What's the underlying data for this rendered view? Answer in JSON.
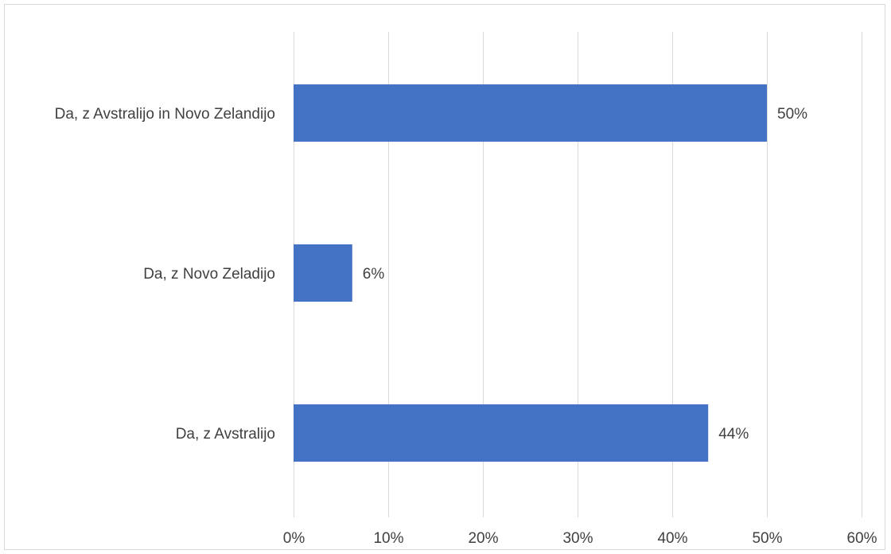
{
  "chart_data": {
    "type": "bar",
    "orientation": "horizontal",
    "categories": [
      "Da, z Avstralijo in Novo Zelandijo",
      "Da, z Novo Zeladijo",
      "Da, z Avstralijo"
    ],
    "values": [
      50,
      6.2,
      43.8
    ],
    "data_labels": [
      "50%",
      "6%",
      "44%"
    ],
    "x_ticks": [
      "0%",
      "10%",
      "20%",
      "30%",
      "40%",
      "50%",
      "60%"
    ],
    "xlim": [
      0,
      60
    ],
    "grid": "vertical",
    "legend": "none",
    "title": "",
    "xlabel": "",
    "ylabel": "",
    "colors": {
      "bar": "#4472c4",
      "grid": "#d9d9d9",
      "text": "#404040",
      "border": "#d9d9d9"
    }
  }
}
